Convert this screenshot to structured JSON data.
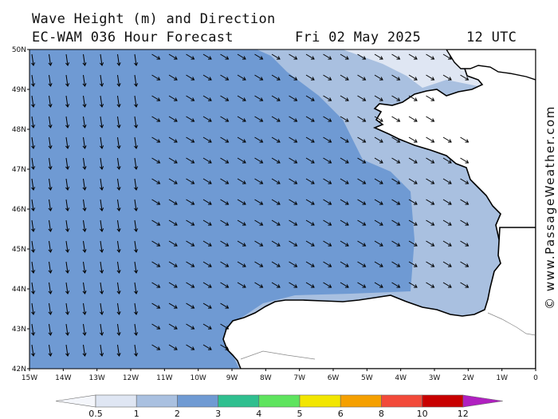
{
  "header": {
    "title": "Wave Height (m) and Direction",
    "model": "EC-WAM 036 Hour Forecast",
    "date": "Fri 02 May 2025",
    "time": "12 UTC"
  },
  "credit": "© www.PassageWeather.com",
  "axes": {
    "lat_labels": [
      "50N",
      "49N",
      "48N",
      "47N",
      "46N",
      "45N",
      "44N",
      "43N",
      "42N"
    ],
    "lon_labels": [
      "15W",
      "14W",
      "13W",
      "12W",
      "11W",
      "10W",
      "9W",
      "8W",
      "7W",
      "6W",
      "5W",
      "4W",
      "3W",
      "2W",
      "1W",
      "0"
    ]
  },
  "scale": {
    "labels": [
      "0.5",
      "1",
      "2",
      "3",
      "4",
      "5",
      "6",
      "8",
      "10",
      "12"
    ],
    "colors": [
      "#f4f6fb",
      "#dfe6f3",
      "#a9c0e0",
      "#6f9ad3",
      "#2fbf8f",
      "#5ee45e",
      "#f2e600",
      "#f5a000",
      "#f24a3a",
      "#c80000",
      "#b020c0"
    ]
  },
  "arrow_direction": "south-east",
  "colors": {
    "zone_1_2": "#a9c0e0",
    "zone_2_3": "#6f9ad3",
    "zone_05_1": "#dfe6f3",
    "land": "#ffffff"
  }
}
